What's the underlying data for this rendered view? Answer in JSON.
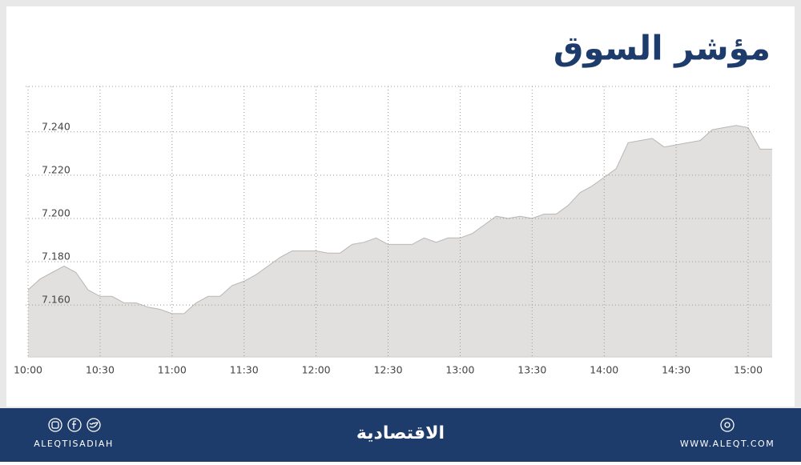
{
  "chart_data": {
    "type": "area",
    "title": "مؤشر السوق",
    "x": [
      "10:00",
      "10:05",
      "10:10",
      "10:15",
      "10:20",
      "10:25",
      "10:30",
      "10:35",
      "10:40",
      "10:45",
      "10:50",
      "10:55",
      "11:00",
      "11:05",
      "11:10",
      "11:15",
      "11:20",
      "11:25",
      "11:30",
      "11:35",
      "11:40",
      "11:45",
      "11:50",
      "11:55",
      "12:00",
      "12:05",
      "12:10",
      "12:15",
      "12:20",
      "12:25",
      "12:30",
      "12:35",
      "12:40",
      "12:45",
      "12:50",
      "12:55",
      "13:00",
      "13:05",
      "13:10",
      "13:15",
      "13:20",
      "13:25",
      "13:30",
      "13:35",
      "13:40",
      "13:45",
      "13:50",
      "13:55",
      "14:00",
      "14:05",
      "14:10",
      "14:15",
      "14:20",
      "14:25",
      "14:30",
      "14:35",
      "14:40",
      "14:45",
      "14:50",
      "14:55",
      "15:00",
      "15:05",
      "15:10"
    ],
    "values": [
      7.167,
      7.172,
      7.175,
      7.178,
      7.175,
      7.167,
      7.164,
      7.164,
      7.161,
      7.161,
      7.159,
      7.158,
      7.156,
      7.156,
      7.161,
      7.164,
      7.164,
      7.169,
      7.171,
      7.174,
      7.178,
      7.182,
      7.185,
      7.185,
      7.185,
      7.184,
      7.184,
      7.188,
      7.189,
      7.191,
      7.188,
      7.188,
      7.188,
      7.191,
      7.189,
      7.191,
      7.191,
      7.193,
      7.197,
      7.201,
      7.2,
      7.201,
      7.2,
      7.202,
      7.202,
      7.206,
      7.212,
      7.215,
      7.219,
      7.223,
      7.235,
      7.236,
      7.237,
      7.233,
      7.234,
      7.235,
      7.236,
      7.241,
      7.242,
      7.243,
      7.242,
      7.232,
      7.232
    ],
    "color": "#e2e0df",
    "xlim": [
      "10:00",
      "15:10"
    ],
    "xticks": [
      "10:00",
      "10:30",
      "11:00",
      "11:30",
      "12:00",
      "12:30",
      "13:00",
      "13:30",
      "14:00",
      "14:30",
      "15:00"
    ],
    "ylim": [
      7.136,
      7.261
    ],
    "yticks": [
      {
        "value": 7.16,
        "label": "7.160"
      },
      {
        "value": 7.18,
        "label": "7.180"
      },
      {
        "value": 7.2,
        "label": "7.200"
      },
      {
        "value": 7.22,
        "label": "7.220"
      },
      {
        "value": 7.24,
        "label": "7.240"
      }
    ],
    "grid": true
  },
  "footer": {
    "handle": "ALEQTISADIAH",
    "brand": "الاقتصادية",
    "website": "WWW.ALEQT.COM"
  }
}
